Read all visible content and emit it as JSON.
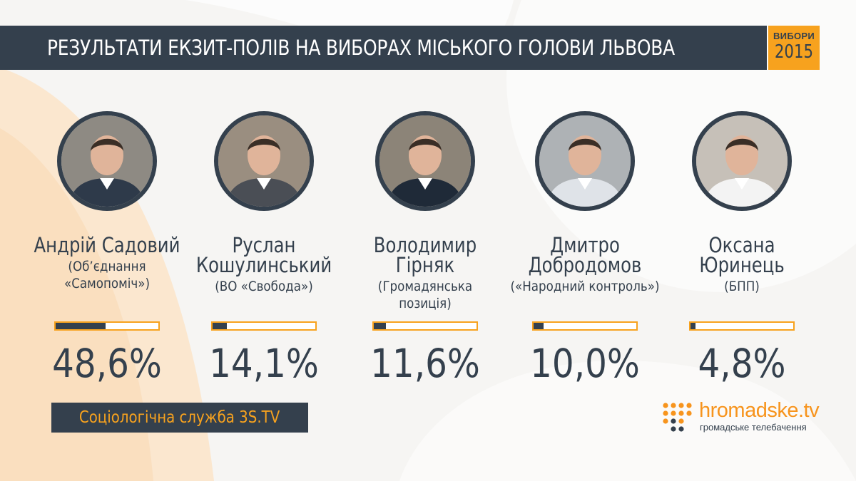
{
  "header": {
    "title": "РЕЗУЛЬТАТИ ЕКЗИТ-ПОЛІВ НА ВИБОРАХ МІСЬКОГО ГОЛОВИ ЛЬВОВА",
    "badge_line1": "ВИБОРИ",
    "badge_line2": "2015"
  },
  "colors": {
    "navy": "#34404d",
    "accent": "#f7a21e",
    "background": "#f6f5f3",
    "bar_empty": "#ffffff"
  },
  "chart_data": {
    "type": "bar",
    "title": "РЕЗУЛЬТАТИ ЕКЗИТ-ПОЛІВ НА ВИБОРАХ МІСЬКОГО ГОЛОВИ ЛЬВОВА",
    "xlabel": "",
    "ylabel": "",
    "ylim": [
      0,
      100
    ],
    "orientation": "horizontal",
    "grid": false,
    "categories": [
      "Андрій Садовий",
      "Руслан Кошулинський",
      "Володимир Гірняк",
      "Дмитро Добродомов",
      "Оксана Юринець"
    ],
    "values": [
      48.6,
      14.1,
      11.6,
      10.0,
      4.8
    ],
    "candidates": [
      {
        "name_lines": [
          "Андрій Садовий"
        ],
        "party_lines": [
          "(Об’єднання",
          "«Самопоміч»)"
        ],
        "value": 48.6,
        "label": "48,6%",
        "photo_icon": "portrait-icon"
      },
      {
        "name_lines": [
          "Руслан",
          "Кошулинський"
        ],
        "party_lines": [
          "(ВО «Свобода»)"
        ],
        "value": 14.1,
        "label": "14,1%",
        "photo_icon": "portrait-icon"
      },
      {
        "name_lines": [
          "Володимир",
          "Гірняк"
        ],
        "party_lines": [
          "(Громадянська",
          "позиція)"
        ],
        "value": 11.6,
        "label": "11,6%",
        "photo_icon": "portrait-icon"
      },
      {
        "name_lines": [
          "Дмитро",
          "Добродомов"
        ],
        "party_lines": [
          "(«Народний контроль»)"
        ],
        "value": 10.0,
        "label": "10,0%",
        "photo_icon": "portrait-icon"
      },
      {
        "name_lines": [
          "Оксана",
          "Юринець"
        ],
        "party_lines": [
          "(БПП)"
        ],
        "value": 4.8,
        "label": "4,8%",
        "photo_icon": "portrait-icon"
      }
    ]
  },
  "footer": {
    "source": "Соціологічна служба 3S.TV",
    "logo_word": "hromadske",
    "logo_tv": ".tv",
    "logo_sub": "громадське телебачення",
    "logo_icon": "hromadske-dots-logo-icon"
  }
}
